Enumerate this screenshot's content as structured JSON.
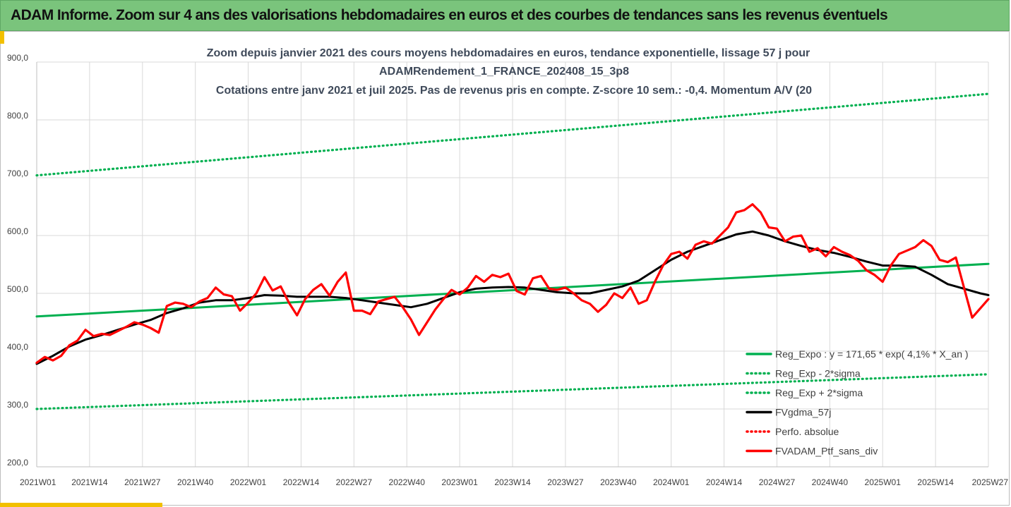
{
  "header": {
    "title": "ADAM Informe. Zoom sur 4 ans des valorisations hebdomadaires en euros et des courbes de tendances sans les revenus éventuels"
  },
  "chart_data": {
    "type": "line",
    "title_lines": [
      "Zoom depuis janvier 2021 des cours moyens hebdomadaires  en euros, tendance exponentielle, lissage 57 j pour",
      "ADAMRendement_1_FRANCE_202408_15_3p8",
      "Cotations entre janv 2021 et juil 2025. Pas de revenus pris en compte. Z-score 10 sem.: -0,4. Momentum A/V (20"
    ],
    "xlabel": "",
    "ylabel": "",
    "ylim": [
      200,
      900
    ],
    "y_ticks": [
      "200,0",
      "300,0",
      "400,0",
      "500,0",
      "600,0",
      "700,0",
      "800,0",
      "900,0"
    ],
    "x_range_weeks": [
      0,
      234
    ],
    "x_ticks": [
      {
        "label": "2021W01",
        "week": 0
      },
      {
        "label": "2021W14",
        "week": 13
      },
      {
        "label": "2021W27",
        "week": 26
      },
      {
        "label": "2021W40",
        "week": 39
      },
      {
        "label": "2022W01",
        "week": 52
      },
      {
        "label": "2022W14",
        "week": 65
      },
      {
        "label": "2022W27",
        "week": 78
      },
      {
        "label": "2022W40",
        "week": 91
      },
      {
        "label": "2023W01",
        "week": 104
      },
      {
        "label": "2023W14",
        "week": 117
      },
      {
        "label": "2023W27",
        "week": 130
      },
      {
        "label": "2023W40",
        "week": 143
      },
      {
        "label": "2024W01",
        "week": 156
      },
      {
        "label": "2024W14",
        "week": 169
      },
      {
        "label": "2024W27",
        "week": 182
      },
      {
        "label": "2024W40",
        "week": 195
      },
      {
        "label": "2025W01",
        "week": 208
      },
      {
        "label": "2025W14",
        "week": 221
      },
      {
        "label": "2025W27",
        "week": 234
      }
    ],
    "grid": {
      "vertical": true,
      "horizontal": true
    },
    "legend_position": "bottom-right",
    "series": [
      {
        "name": "Reg_Expo : y = 171,65 * exp( 4,1% *  X_an )",
        "color": "#00b050",
        "style": "solid",
        "points": [
          [
            0,
            460
          ],
          [
            234,
            551
          ]
        ]
      },
      {
        "name": "Reg_Exp - 2*sigma",
        "color": "#00b050",
        "style": "dotted",
        "points": [
          [
            0,
            300
          ],
          [
            234,
            360
          ]
        ]
      },
      {
        "name": "Reg_Exp + 2*sigma",
        "color": "#00b050",
        "style": "dotted",
        "points": [
          [
            0,
            704
          ],
          [
            234,
            845
          ]
        ]
      },
      {
        "name": "FVgdma_57j",
        "color": "#000000",
        "style": "solid",
        "points": [
          [
            0,
            378
          ],
          [
            4,
            392
          ],
          [
            8,
            408
          ],
          [
            12,
            420
          ],
          [
            16,
            428
          ],
          [
            20,
            437
          ],
          [
            24,
            446
          ],
          [
            28,
            454
          ],
          [
            32,
            466
          ],
          [
            36,
            474
          ],
          [
            40,
            484
          ],
          [
            44,
            488
          ],
          [
            48,
            488
          ],
          [
            52,
            492
          ],
          [
            56,
            497
          ],
          [
            60,
            496
          ],
          [
            64,
            494
          ],
          [
            68,
            494
          ],
          [
            72,
            494
          ],
          [
            76,
            492
          ],
          [
            80,
            488
          ],
          [
            84,
            484
          ],
          [
            88,
            480
          ],
          [
            92,
            476
          ],
          [
            96,
            482
          ],
          [
            100,
            492
          ],
          [
            104,
            502
          ],
          [
            108,
            508
          ],
          [
            112,
            510
          ],
          [
            116,
            511
          ],
          [
            120,
            510
          ],
          [
            124,
            506
          ],
          [
            128,
            502
          ],
          [
            132,
            500
          ],
          [
            136,
            500
          ],
          [
            140,
            506
          ],
          [
            144,
            512
          ],
          [
            148,
            522
          ],
          [
            152,
            540
          ],
          [
            156,
            558
          ],
          [
            160,
            572
          ],
          [
            164,
            582
          ],
          [
            168,
            592
          ],
          [
            172,
            602
          ],
          [
            176,
            607
          ],
          [
            180,
            600
          ],
          [
            184,
            590
          ],
          [
            188,
            582
          ],
          [
            192,
            575
          ],
          [
            196,
            570
          ],
          [
            200,
            563
          ],
          [
            204,
            555
          ],
          [
            208,
            548
          ],
          [
            212,
            548
          ],
          [
            216,
            546
          ],
          [
            220,
            532
          ],
          [
            224,
            516
          ],
          [
            228,
            508
          ],
          [
            232,
            500
          ],
          [
            234,
            497
          ]
        ]
      },
      {
        "name": "Perfo. absolue",
        "color": "#ff0000",
        "style": "dotted",
        "points": []
      },
      {
        "name": "FVADAM_Ptf_sans_div",
        "color": "#ff0000",
        "style": "solid",
        "points": [
          [
            0,
            380
          ],
          [
            2,
            390
          ],
          [
            4,
            384
          ],
          [
            6,
            392
          ],
          [
            8,
            410
          ],
          [
            10,
            418
          ],
          [
            12,
            437
          ],
          [
            14,
            426
          ],
          [
            16,
            430
          ],
          [
            18,
            428
          ],
          [
            20,
            435
          ],
          [
            22,
            442
          ],
          [
            24,
            450
          ],
          [
            26,
            446
          ],
          [
            28,
            440
          ],
          [
            30,
            432
          ],
          [
            32,
            478
          ],
          [
            34,
            484
          ],
          [
            36,
            482
          ],
          [
            38,
            476
          ],
          [
            40,
            486
          ],
          [
            42,
            492
          ],
          [
            44,
            510
          ],
          [
            46,
            498
          ],
          [
            48,
            495
          ],
          [
            50,
            470
          ],
          [
            52,
            484
          ],
          [
            54,
            500
          ],
          [
            56,
            528
          ],
          [
            58,
            505
          ],
          [
            60,
            512
          ],
          [
            62,
            484
          ],
          [
            64,
            462
          ],
          [
            66,
            490
          ],
          [
            68,
            506
          ],
          [
            70,
            516
          ],
          [
            72,
            496
          ],
          [
            74,
            520
          ],
          [
            76,
            536
          ],
          [
            78,
            470
          ],
          [
            80,
            470
          ],
          [
            82,
            464
          ],
          [
            84,
            486
          ],
          [
            86,
            490
          ],
          [
            88,
            494
          ],
          [
            90,
            476
          ],
          [
            92,
            455
          ],
          [
            94,
            428
          ],
          [
            96,
            450
          ],
          [
            98,
            472
          ],
          [
            100,
            490
          ],
          [
            102,
            506
          ],
          [
            104,
            498
          ],
          [
            106,
            510
          ],
          [
            108,
            530
          ],
          [
            110,
            520
          ],
          [
            112,
            532
          ],
          [
            114,
            528
          ],
          [
            116,
            534
          ],
          [
            118,
            504
          ],
          [
            120,
            498
          ],
          [
            122,
            526
          ],
          [
            124,
            530
          ],
          [
            126,
            508
          ],
          [
            128,
            506
          ],
          [
            130,
            510
          ],
          [
            132,
            500
          ],
          [
            134,
            488
          ],
          [
            136,
            482
          ],
          [
            138,
            468
          ],
          [
            140,
            480
          ],
          [
            142,
            500
          ],
          [
            144,
            492
          ],
          [
            146,
            510
          ],
          [
            148,
            482
          ],
          [
            150,
            488
          ],
          [
            152,
            520
          ],
          [
            154,
            548
          ],
          [
            156,
            568
          ],
          [
            158,
            572
          ],
          [
            160,
            560
          ],
          [
            162,
            584
          ],
          [
            164,
            590
          ],
          [
            166,
            586
          ],
          [
            168,
            600
          ],
          [
            170,
            614
          ],
          [
            172,
            640
          ],
          [
            174,
            644
          ],
          [
            176,
            654
          ],
          [
            178,
            640
          ],
          [
            180,
            614
          ],
          [
            182,
            612
          ],
          [
            184,
            590
          ],
          [
            186,
            598
          ],
          [
            188,
            600
          ],
          [
            190,
            572
          ],
          [
            192,
            578
          ],
          [
            194,
            564
          ],
          [
            196,
            580
          ],
          [
            198,
            572
          ],
          [
            200,
            566
          ],
          [
            202,
            556
          ],
          [
            204,
            540
          ],
          [
            206,
            532
          ],
          [
            208,
            520
          ],
          [
            210,
            548
          ],
          [
            212,
            568
          ],
          [
            214,
            574
          ],
          [
            216,
            580
          ],
          [
            218,
            592
          ],
          [
            220,
            582
          ],
          [
            222,
            558
          ],
          [
            224,
            554
          ],
          [
            226,
            562
          ],
          [
            228,
            510
          ],
          [
            230,
            458
          ],
          [
            232,
            474
          ],
          [
            234,
            490
          ]
        ]
      }
    ]
  }
}
